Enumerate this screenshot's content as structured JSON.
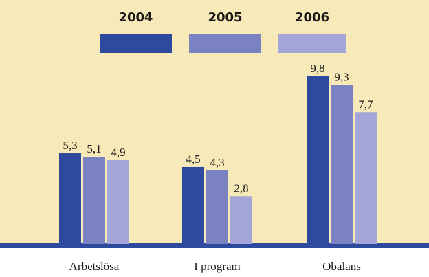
{
  "chart_data": {
    "type": "bar",
    "categories": [
      "Arbetslösa",
      "I program",
      "Obalans"
    ],
    "series": [
      {
        "name": "2004",
        "color": "#2e4a9e",
        "values": [
          5.3,
          4.5,
          9.8
        ],
        "value_labels": [
          "5,3",
          "4,5",
          "9,8"
        ]
      },
      {
        "name": "2005",
        "color": "#7b82c2",
        "values": [
          5.1,
          4.3,
          9.3
        ],
        "value_labels": [
          "5,1",
          "4,3",
          "9,3"
        ]
      },
      {
        "name": "2006",
        "color": "#a3a6d6",
        "values": [
          4.9,
          2.8,
          7.7
        ],
        "value_labels": [
          "4,9",
          "2,8",
          "7,7"
        ]
      }
    ],
    "ylim": [
      0,
      10
    ]
  }
}
